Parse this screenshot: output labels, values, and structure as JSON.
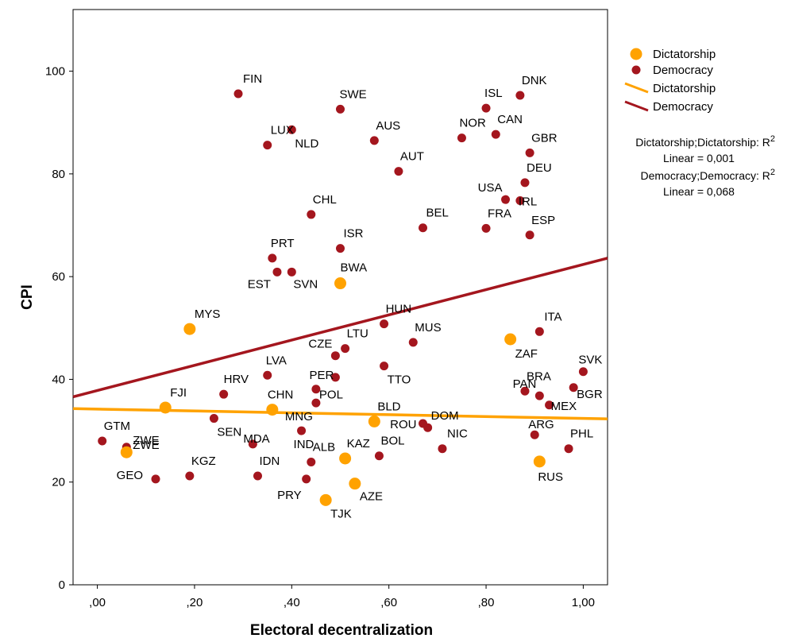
{
  "chart_data": {
    "type": "scatter",
    "xlabel": "Electoral decentralization",
    "ylabel": "CPI",
    "xlim": [
      -0.05,
      1.05
    ],
    "ylim": [
      0,
      112
    ],
    "x_ticks": [
      0,
      0.2,
      0.4,
      0.6,
      0.8,
      1.0
    ],
    "x_tick_labels": [
      ",00",
      ",20",
      ",40",
      ",60",
      ",80",
      "1,00"
    ],
    "y_ticks": [
      0,
      20,
      40,
      60,
      80,
      100
    ],
    "y_tick_labels": [
      "0",
      "20",
      "40",
      "60",
      "80",
      "100"
    ],
    "grid": false,
    "legend_position": "right",
    "series": [
      {
        "name": "Dictatorship",
        "color": "#ffa200",
        "points": [
          {
            "label": "MYS",
            "x": 0.19,
            "y": 49.8
          },
          {
            "label": "BWA",
            "x": 0.5,
            "y": 58.7
          },
          {
            "label": "FJI",
            "x": 0.14,
            "y": 34.5
          },
          {
            "label": "CHN",
            "x": 0.36,
            "y": 34.1
          },
          {
            "label": "BLD",
            "x": 0.57,
            "y": 31.8
          },
          {
            "label": "ZWE",
            "x": 0.06,
            "y": 25.8
          },
          {
            "label": "KAZ",
            "x": 0.51,
            "y": 24.6
          },
          {
            "label": "AZE",
            "x": 0.53,
            "y": 19.7
          },
          {
            "label": "TJK",
            "x": 0.47,
            "y": 16.5
          },
          {
            "label": "ZAF",
            "x": 0.85,
            "y": 47.8
          },
          {
            "label": "RUS",
            "x": 0.91,
            "y": 24.0
          }
        ]
      },
      {
        "name": "Democracy",
        "color": "#a4161e",
        "points": [
          {
            "label": "FIN",
            "x": 0.29,
            "y": 95.6
          },
          {
            "label": "SWE",
            "x": 0.5,
            "y": 92.6
          },
          {
            "label": "LUX",
            "x": 0.35,
            "y": 85.6
          },
          {
            "label": "NLD",
            "x": 0.4,
            "y": 88.6
          },
          {
            "label": "AUS",
            "x": 0.57,
            "y": 86.5
          },
          {
            "label": "AUT",
            "x": 0.62,
            "y": 80.5
          },
          {
            "label": "ISL",
            "x": 0.8,
            "y": 92.8
          },
          {
            "label": "DNK",
            "x": 0.87,
            "y": 95.3
          },
          {
            "label": "NOR",
            "x": 0.75,
            "y": 87.0
          },
          {
            "label": "CAN",
            "x": 0.82,
            "y": 87.7
          },
          {
            "label": "GBR",
            "x": 0.89,
            "y": 84.1
          },
          {
            "label": "DEU",
            "x": 0.88,
            "y": 78.3
          },
          {
            "label": "USA",
            "x": 0.84,
            "y": 75.0
          },
          {
            "label": "IRL",
            "x": 0.87,
            "y": 74.8
          },
          {
            "label": "CHL",
            "x": 0.44,
            "y": 72.1
          },
          {
            "label": "BEL",
            "x": 0.67,
            "y": 69.5
          },
          {
            "label": "FRA",
            "x": 0.8,
            "y": 69.4
          },
          {
            "label": "ESP",
            "x": 0.89,
            "y": 68.1
          },
          {
            "label": "ISR",
            "x": 0.5,
            "y": 65.5
          },
          {
            "label": "PRT",
            "x": 0.36,
            "y": 63.6
          },
          {
            "label": "EST",
            "x": 0.37,
            "y": 60.9
          },
          {
            "label": "SVN",
            "x": 0.4,
            "y": 60.9
          },
          {
            "label": "HUN",
            "x": 0.59,
            "y": 50.8
          },
          {
            "label": "ITA",
            "x": 0.91,
            "y": 49.3
          },
          {
            "label": "MUS",
            "x": 0.65,
            "y": 47.2
          },
          {
            "label": "LTU",
            "x": 0.51,
            "y": 46.0
          },
          {
            "label": "CZE",
            "x": 0.49,
            "y": 44.6
          },
          {
            "label": "TTO",
            "x": 0.59,
            "y": 42.6
          },
          {
            "label": "LVA",
            "x": 0.35,
            "y": 40.8
          },
          {
            "label": "PER",
            "x": 0.49,
            "y": 40.4
          },
          {
            "label": "SVK",
            "x": 1.0,
            "y": 41.5
          },
          {
            "label": "HRV",
            "x": 0.26,
            "y": 37.1
          },
          {
            "label": "POL",
            "x": 0.45,
            "y": 38.1
          },
          {
            "label": "BRA",
            "x": 0.88,
            "y": 37.7
          },
          {
            "label": "BGR",
            "x": 0.98,
            "y": 38.4
          },
          {
            "label": "MNG",
            "x": 0.45,
            "y": 35.4
          },
          {
            "label": "PAN",
            "x": 0.91,
            "y": 36.8
          },
          {
            "label": "MEX",
            "x": 0.93,
            "y": 35.0
          },
          {
            "label": "SEN",
            "x": 0.24,
            "y": 32.4
          },
          {
            "label": "ROU",
            "x": 0.67,
            "y": 31.4
          },
          {
            "label": "DOM",
            "x": 0.68,
            "y": 30.6
          },
          {
            "label": "MDA",
            "x": 0.32,
            "y": 27.4
          },
          {
            "label": "IND",
            "x": 0.42,
            "y": 30.0
          },
          {
            "label": "GTM",
            "x": 0.01,
            "y": 28.0
          },
          {
            "label": "ZWE",
            "x": 0.06,
            "y": 26.8
          },
          {
            "label": "NIC",
            "x": 0.71,
            "y": 26.5
          },
          {
            "label": "ARG",
            "x": 0.9,
            "y": 29.2
          },
          {
            "label": "PHL",
            "x": 0.97,
            "y": 26.5
          },
          {
            "label": "BOL",
            "x": 0.58,
            "y": 25.1
          },
          {
            "label": "ALB",
            "x": 0.44,
            "y": 23.9
          },
          {
            "label": "KGZ",
            "x": 0.19,
            "y": 21.2
          },
          {
            "label": "IDN",
            "x": 0.33,
            "y": 21.2
          },
          {
            "label": "GEO",
            "x": 0.12,
            "y": 20.6
          },
          {
            "label": "PRY",
            "x": 0.43,
            "y": 20.6
          }
        ]
      }
    ],
    "fit_lines": [
      {
        "name": "Dictatorship",
        "color": "#ffa200",
        "x": [
          -0.05,
          1.05
        ],
        "y": [
          34.3,
          32.3
        ]
      },
      {
        "name": "Democracy",
        "color": "#a4161e",
        "x": [
          -0.05,
          1.05
        ],
        "y": [
          36.6,
          63.6
        ]
      }
    ],
    "legend": [
      {
        "kind": "marker",
        "label": "Dictatorship",
        "color": "#ffa200"
      },
      {
        "kind": "marker",
        "label": "Democracy",
        "color": "#a4161e"
      },
      {
        "kind": "line",
        "label": "Dictatorship",
        "color": "#ffa200"
      },
      {
        "kind": "line",
        "label": "Democracy",
        "color": "#a4161e"
      }
    ],
    "r_squared_notes": [
      {
        "line1": "Dictatorship;Dictatorship: R",
        "sup": "2",
        "line2": "Linear = 0,001"
      },
      {
        "line1": "Democracy;Democracy: R",
        "sup": "2",
        "line2": "Linear = 0,068"
      }
    ]
  }
}
